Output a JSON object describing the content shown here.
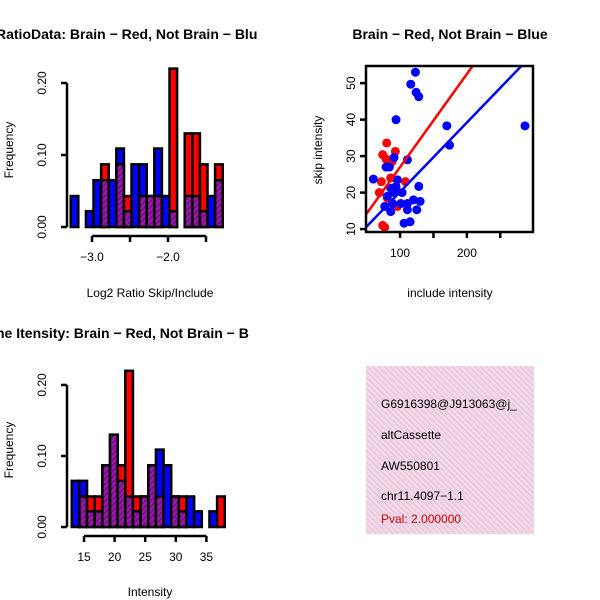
{
  "colors": {
    "red": "#ff0000",
    "blue": "#0000ff",
    "purple": "#9a1aa8",
    "info_bg": "#f6d6ee",
    "pval": "#cc0000"
  },
  "chart_data": [
    {
      "type": "bar",
      "title": "RatioData: Brain − Red, Not Brain − Blu",
      "xlabel": "Log2 Ratio Skip/Include",
      "ylabel": "Frequency",
      "bin_start": -3.28,
      "bin_width": 0.1,
      "xticks": [
        -3.0,
        -2.5,
        -2.0,
        -1.5
      ],
      "xtick_labels": [
        "−3.0",
        "",
        "−2.0",
        ""
      ],
      "yticks": [
        0,
        0.1,
        0.2
      ],
      "ytick_labels": [
        "0.00",
        "0.10",
        "0.20"
      ],
      "series": [
        {
          "name": "Brain",
          "color": "red",
          "values": [
            0,
            0,
            0,
            0,
            0.087,
            0,
            0.087,
            0.043,
            0,
            0.043,
            0.043,
            0.043,
            0,
            0.22,
            0,
            0.13,
            0.13,
            0.087,
            0,
            0.087
          ]
        },
        {
          "name": "Not Brain",
          "color": "blue",
          "values": [
            0.043,
            0,
            0.022,
            0.065,
            0.065,
            0.065,
            0.109,
            0.022,
            0.087,
            0.087,
            0.043,
            0.109,
            0.043,
            0.022,
            0,
            0.043,
            0.043,
            0.022,
            0.043,
            0.065
          ]
        }
      ]
    },
    {
      "type": "scatter",
      "title": "Brain − Red, Not Brain − Blue",
      "xlabel": "include intensity",
      "ylabel": "skip intensity",
      "xlim": [
        49,
        299
      ],
      "ylim": [
        9.2,
        54.7
      ],
      "xticks": [
        100,
        150,
        200,
        250
      ],
      "xtick_labels": [
        "100",
        "",
        "200",
        ""
      ],
      "yticks": [
        10,
        20,
        30,
        40,
        50
      ],
      "ytick_labels": [
        "10",
        "20",
        "30",
        "40",
        "50"
      ],
      "series": [
        {
          "name": "Brain",
          "color": "red",
          "points": [
            [
              80,
              33.6
            ],
            [
              74,
              30.4
            ],
            [
              93,
              31.3
            ],
            [
              79,
              29.2
            ],
            [
              88,
              28.5
            ],
            [
              72,
              23
            ],
            [
              108,
              23
            ],
            [
              69,
              20
            ],
            [
              86,
              24
            ],
            [
              74,
              11
            ],
            [
              77,
              10.5
            ],
            [
              81,
              18.5
            ],
            [
              96,
              16.2
            ]
          ],
          "fit": {
            "intercept": 1.5,
            "slope": 0.255
          }
        },
        {
          "name": "Not Brain",
          "color": "blue",
          "points": [
            [
              123,
              53
            ],
            [
              116,
              49.7
            ],
            [
              124,
              47.5
            ],
            [
              128,
              46.3
            ],
            [
              94,
              40
            ],
            [
              170,
              38.3
            ],
            [
              287,
              38.3
            ],
            [
              174,
              33
            ],
            [
              111,
              29
            ],
            [
              91,
              29.6
            ],
            [
              79,
              27
            ],
            [
              84,
              27
            ],
            [
              60,
              23.7
            ],
            [
              128,
              21.7
            ],
            [
              96,
              23.5
            ],
            [
              91,
              20
            ],
            [
              81,
              19
            ],
            [
              103,
              20
            ],
            [
              77,
              16.2
            ],
            [
              86,
              14.8
            ],
            [
              111,
              15.3
            ],
            [
              120,
              18
            ],
            [
              130,
              17.6
            ],
            [
              125,
              15.3
            ],
            [
              106,
              11.6
            ],
            [
              115,
              12
            ],
            [
              89,
              17
            ],
            [
              101,
              17
            ],
            [
              111,
              17
            ],
            [
              94,
              21.7
            ],
            [
              86,
              21.2
            ]
          ],
          "fit": {
            "intercept": 1.2,
            "slope": 0.19
          }
        }
      ]
    },
    {
      "type": "bar",
      "title": "ne Itensity: Brain − Red, Not Brain − B",
      "xlabel": "Intensity",
      "ylabel": "Frequency",
      "bin_start": 13,
      "bin_width": 1.25,
      "xticks": [
        15,
        20,
        25,
        30,
        35
      ],
      "xtick_labels": [
        "15",
        "20",
        "25",
        "30",
        "35"
      ],
      "yticks": [
        0,
        0.1,
        0.2
      ],
      "ytick_labels": [
        "0.00",
        "0.10",
        "0.20"
      ],
      "series": [
        {
          "name": "Brain",
          "color": "red",
          "values": [
            0,
            0.043,
            0.043,
            0.043,
            0.087,
            0.13,
            0.087,
            0.22,
            0.043,
            0.043,
            0.087,
            0.043,
            0,
            0.043,
            0.043,
            0,
            0,
            0,
            0,
            0.043
          ]
        },
        {
          "name": "Not Brain",
          "color": "blue",
          "values": [
            0.065,
            0.065,
            0.022,
            0.022,
            0.087,
            0.13,
            0.065,
            0.043,
            0.022,
            0.043,
            0.087,
            0.109,
            0.087,
            0.043,
            0.022,
            0.043,
            0.022,
            0,
            0.022,
            0
          ]
        }
      ]
    }
  ],
  "info": {
    "lines": [
      "G6916398@J913063@j_",
      "altCassette",
      "AW550801",
      "chr11.4097−1.1"
    ],
    "pval": "Pval: 2.000000"
  }
}
